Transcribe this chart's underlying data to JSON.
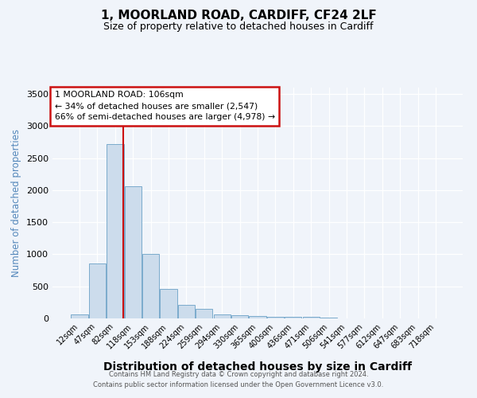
{
  "title": "1, MOORLAND ROAD, CARDIFF, CF24 2LF",
  "subtitle": "Size of property relative to detached houses in Cardiff",
  "xlabel": "Distribution of detached houses by size in Cardiff",
  "ylabel": "Number of detached properties",
  "footer_line1": "Contains HM Land Registry data © Crown copyright and database right 2024.",
  "footer_line2": "Contains public sector information licensed under the Open Government Licence v3.0.",
  "categories": [
    "12sqm",
    "47sqm",
    "82sqm",
    "118sqm",
    "153sqm",
    "188sqm",
    "224sqm",
    "259sqm",
    "294sqm",
    "330sqm",
    "365sqm",
    "400sqm",
    "436sqm",
    "471sqm",
    "506sqm",
    "541sqm",
    "577sqm",
    "612sqm",
    "647sqm",
    "683sqm",
    "718sqm"
  ],
  "values": [
    65,
    855,
    2720,
    2060,
    1010,
    455,
    210,
    155,
    65,
    50,
    35,
    25,
    30,
    22,
    8,
    4,
    3,
    2,
    2,
    1,
    1
  ],
  "bar_color": "#ccdcec",
  "bar_edge_color": "#7aabcc",
  "vline_x": 2.45,
  "vline_color": "#cc1111",
  "annotation_line1": "1 MOORLAND ROAD: 106sqm",
  "annotation_line2": "← 34% of detached houses are smaller (2,547)",
  "annotation_line3": "66% of semi-detached houses are larger (4,978) →",
  "annotation_box_edgecolor": "#cc1111",
  "ylim": [
    0,
    3600
  ],
  "yticks": [
    0,
    500,
    1000,
    1500,
    2000,
    2500,
    3000,
    3500
  ],
  "bg_color": "#f0f4fa",
  "grid_color": "#ffffff",
  "title_fontsize": 11,
  "subtitle_fontsize": 9,
  "xlabel_fontsize": 10,
  "ylabel_fontsize": 8.5,
  "tick_fontsize": 8,
  "xtick_fontsize": 7
}
